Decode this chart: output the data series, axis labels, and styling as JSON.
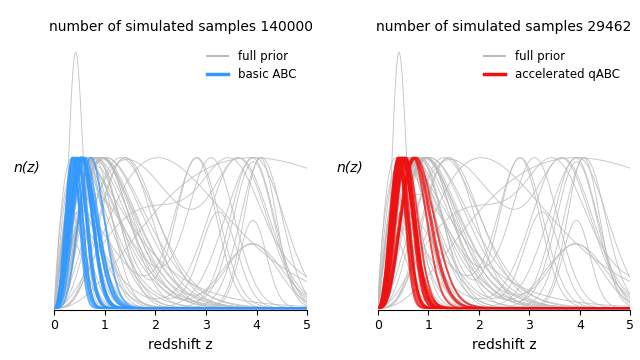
{
  "title_left": "number of simulated samples 140000",
  "title_right": "number of simulated samples 29462",
  "xlabel": "redshift z",
  "ylabel": "n(z)",
  "xlim": [
    0,
    5
  ],
  "xticks": [
    0,
    1,
    2,
    3,
    4,
    5
  ],
  "legend_left": [
    "full prior",
    "basic ABC"
  ],
  "legend_right": [
    "full prior",
    "accelerated qABC"
  ],
  "color_gray": "#bbbbbb",
  "color_blue": "#3399ff",
  "color_red": "#ee1111",
  "n_gray": 45,
  "n_blue": 20,
  "n_red": 20,
  "seed_gray": 7,
  "seed_blue": 13,
  "seed_red": 99
}
